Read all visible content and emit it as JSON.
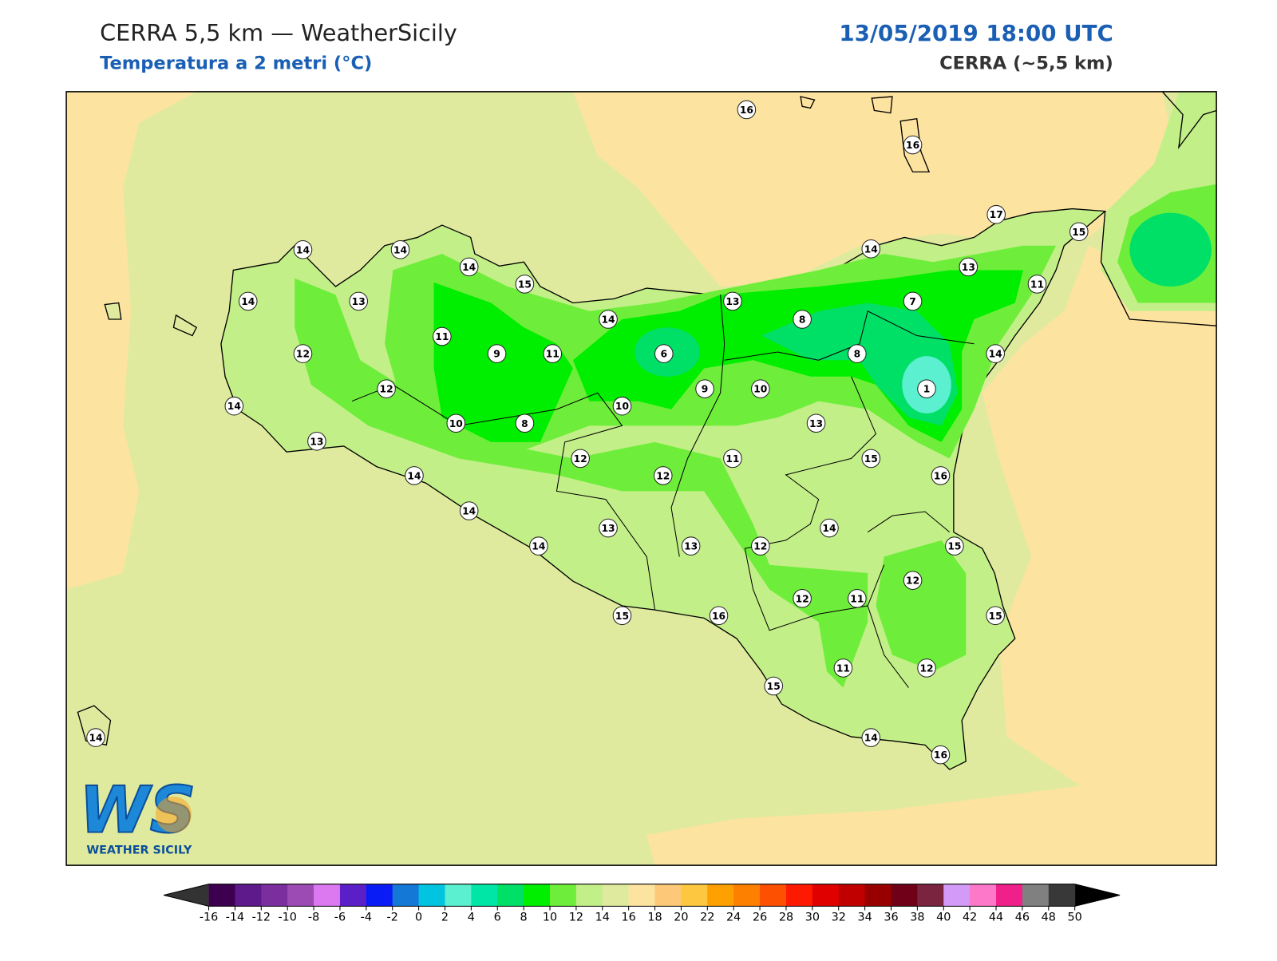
{
  "header": {
    "title": "CERRA 5,5 km — WeatherSicily",
    "subtitle": "Temperatura a 2 metri (°C)",
    "datetime": "13/05/2019 18:00 UTC",
    "model": "CERRA (~5,5 km)"
  },
  "stations": [
    16,
    16,
    17,
    15,
    14,
    14,
    14,
    15,
    14,
    13,
    11,
    14,
    13,
    14,
    13,
    8,
    7,
    12,
    11,
    9,
    11,
    6,
    8,
    14,
    12,
    9,
    10,
    1,
    14,
    10,
    10,
    8,
    13,
    13,
    12,
    11,
    15,
    14,
    12,
    16,
    14,
    14,
    13,
    14,
    13,
    12,
    15,
    12,
    12,
    11,
    15,
    16,
    15,
    11,
    12,
    15,
    14,
    16,
    14
  ],
  "colorbar": {
    "ticks": [
      -16,
      -14,
      -12,
      -10,
      -8,
      -6,
      -4,
      -2,
      0,
      2,
      4,
      6,
      8,
      10,
      12,
      14,
      16,
      18,
      20,
      22,
      24,
      26,
      28,
      30,
      32,
      34,
      36,
      38,
      40,
      42,
      44,
      46,
      48,
      50
    ],
    "colors": [
      "#3d0051",
      "#5e1a8a",
      "#7b2f9e",
      "#9c4bb5",
      "#dc78f0",
      "#5b1fc8",
      "#0a1cf5",
      "#1478d6",
      "#00c4e0",
      "#5af0d0",
      "#00e6a6",
      "#00e066",
      "#00ee00",
      "#6eee3a",
      "#c3ef88",
      "#e0ea9e",
      "#fde3a0",
      "#fdc878",
      "#fdc840",
      "#fda000",
      "#fd8000",
      "#fd5000",
      "#fd1a00",
      "#e00000",
      "#c00000",
      "#980000",
      "#700018",
      "#7a2440",
      "#d39af8",
      "#fd78c8",
      "#f0208a",
      "#808080",
      "#383838"
    ],
    "under_color": "#333333",
    "over_color": "#000000"
  },
  "logo": {
    "initials": "WS",
    "name": "WEATHER SICILY"
  }
}
